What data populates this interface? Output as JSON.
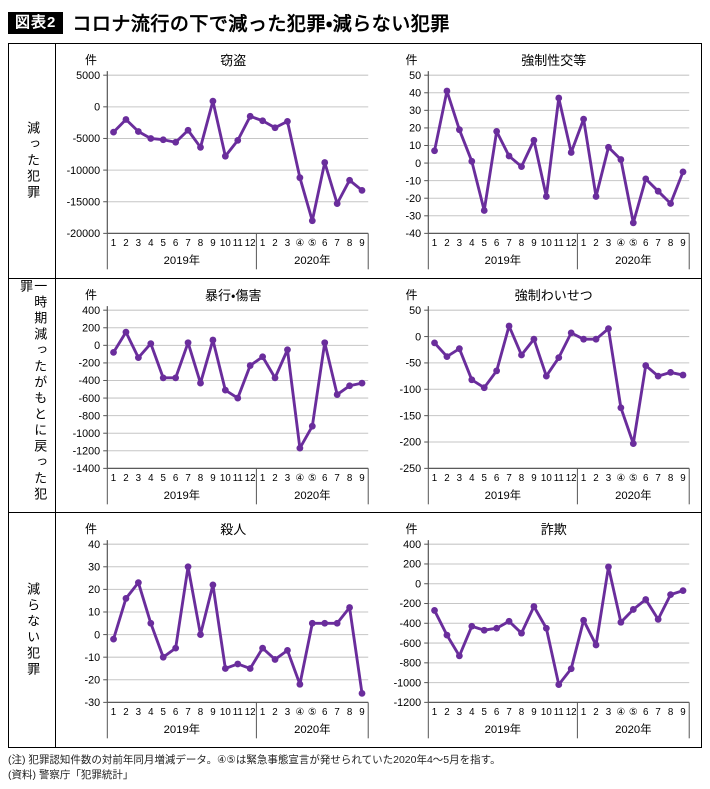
{
  "header": {
    "badge": "図表2",
    "title": "コロナ流行の下で減った犯罪・減らない犯罪"
  },
  "rows": [
    {
      "label": "減った犯罪"
    },
    {
      "label": "一時期減ったがもとに戻った犯罪"
    },
    {
      "label": "減らない犯罪"
    }
  ],
  "notes": {
    "note1": "(注) 犯罪認知件数の対前年同月増減データ。④⑤は緊急事態宣言が発せられていた2020年4〜5月を指す。",
    "note2": "(資料) 警察庁「犯罪統計」"
  },
  "colors": {
    "line": "#6A2D9C",
    "grid": "#C6C6C6",
    "axis": "#5A5A5A",
    "border": "#000000"
  },
  "chart_data": [
    {
      "type": "line",
      "title": "窃盗",
      "unit": "件",
      "categories": [
        "1",
        "2",
        "3",
        "4",
        "5",
        "6",
        "7",
        "8",
        "9",
        "10",
        "11",
        "12",
        "1",
        "2",
        "3",
        "④",
        "⑤",
        "6",
        "7",
        "8",
        "9"
      ],
      "year_groups": [
        {
          "label": "2019年",
          "span": 12
        },
        {
          "label": "2020年",
          "span": 9
        }
      ],
      "values": [
        -4000,
        -2000,
        -3900,
        -5000,
        -5200,
        -5600,
        -3700,
        -6400,
        900,
        -7800,
        -5300,
        -1500,
        -2200,
        -3300,
        -2300,
        -11200,
        -18000,
        -8800,
        -15300,
        -11600,
        -13200
      ],
      "ylim": [
        -20000,
        5000
      ],
      "ytick_step": 5000,
      "grid": true,
      "legend": "none"
    },
    {
      "type": "line",
      "title": "強制性交等",
      "unit": "件",
      "categories": [
        "1",
        "2",
        "3",
        "4",
        "5",
        "6",
        "7",
        "8",
        "9",
        "10",
        "11",
        "12",
        "1",
        "2",
        "3",
        "④",
        "⑤",
        "6",
        "7",
        "8",
        "9"
      ],
      "year_groups": [
        {
          "label": "2019年",
          "span": 12
        },
        {
          "label": "2020年",
          "span": 9
        }
      ],
      "values": [
        7,
        41,
        19,
        1,
        -27,
        18,
        4,
        -2,
        13,
        -19,
        37,
        6,
        25,
        -19,
        9,
        2,
        -34,
        -9,
        -16,
        -23,
        -5
      ],
      "ylim": [
        -40,
        50
      ],
      "ytick_step": 10,
      "grid": true,
      "legend": "none"
    },
    {
      "type": "line",
      "title": "暴行・傷害",
      "unit": "件",
      "categories": [
        "1",
        "2",
        "3",
        "4",
        "5",
        "6",
        "7",
        "8",
        "9",
        "10",
        "11",
        "12",
        "1",
        "2",
        "3",
        "④",
        "⑤",
        "6",
        "7",
        "8",
        "9"
      ],
      "year_groups": [
        {
          "label": "2019年",
          "span": 12
        },
        {
          "label": "2020年",
          "span": 9
        }
      ],
      "values": [
        -80,
        150,
        -140,
        20,
        -370,
        -370,
        30,
        -430,
        60,
        -510,
        -600,
        -230,
        -130,
        -370,
        -50,
        -1170,
        -920,
        30,
        -560,
        -460,
        -430
      ],
      "ylim": [
        -1400,
        400
      ],
      "ytick_step": 200,
      "grid": true,
      "legend": "none"
    },
    {
      "type": "line",
      "title": "強制わいせつ",
      "unit": "件",
      "categories": [
        "1",
        "2",
        "3",
        "4",
        "5",
        "6",
        "7",
        "8",
        "9",
        "10",
        "11",
        "12",
        "1",
        "2",
        "3",
        "④",
        "⑤",
        "6",
        "7",
        "8",
        "9"
      ],
      "year_groups": [
        {
          "label": "2019年",
          "span": 12
        },
        {
          "label": "2020年",
          "span": 9
        }
      ],
      "values": [
        -12,
        -38,
        -23,
        -82,
        -97,
        -65,
        20,
        -35,
        -5,
        -75,
        -40,
        7,
        -5,
        -5,
        15,
        -135,
        -203,
        -55,
        -75,
        -68,
        -73
      ],
      "ylim": [
        -250,
        50
      ],
      "ytick_step": 50,
      "grid": true,
      "legend": "none"
    },
    {
      "type": "line",
      "title": "殺人",
      "unit": "件",
      "categories": [
        "1",
        "2",
        "3",
        "4",
        "5",
        "6",
        "7",
        "8",
        "9",
        "10",
        "11",
        "12",
        "1",
        "2",
        "3",
        "④",
        "⑤",
        "6",
        "7",
        "8",
        "9"
      ],
      "year_groups": [
        {
          "label": "2019年",
          "span": 12
        },
        {
          "label": "2020年",
          "span": 9
        }
      ],
      "values": [
        -2,
        16,
        23,
        5,
        -10,
        -6,
        30,
        0,
        22,
        -15,
        -13,
        -15,
        -6,
        -11,
        -7,
        -22,
        5,
        5,
        5,
        12,
        -26
      ],
      "ylim": [
        -30,
        40
      ],
      "ytick_step": 10,
      "grid": true,
      "legend": "none"
    },
    {
      "type": "line",
      "title": "詐欺",
      "unit": "件",
      "categories": [
        "1",
        "2",
        "3",
        "4",
        "5",
        "6",
        "7",
        "8",
        "9",
        "10",
        "11",
        "12",
        "1",
        "2",
        "3",
        "④",
        "⑤",
        "6",
        "7",
        "8",
        "9"
      ],
      "year_groups": [
        {
          "label": "2019年",
          "span": 12
        },
        {
          "label": "2020年",
          "span": 9
        }
      ],
      "values": [
        -270,
        -520,
        -730,
        -430,
        -470,
        -450,
        -380,
        -500,
        -230,
        -450,
        -1020,
        -860,
        -370,
        -620,
        170,
        -390,
        -260,
        -160,
        -360,
        -110,
        -70
      ],
      "ylim": [
        -1200,
        400
      ],
      "ytick_step": 200,
      "grid": true,
      "legend": "none"
    }
  ]
}
